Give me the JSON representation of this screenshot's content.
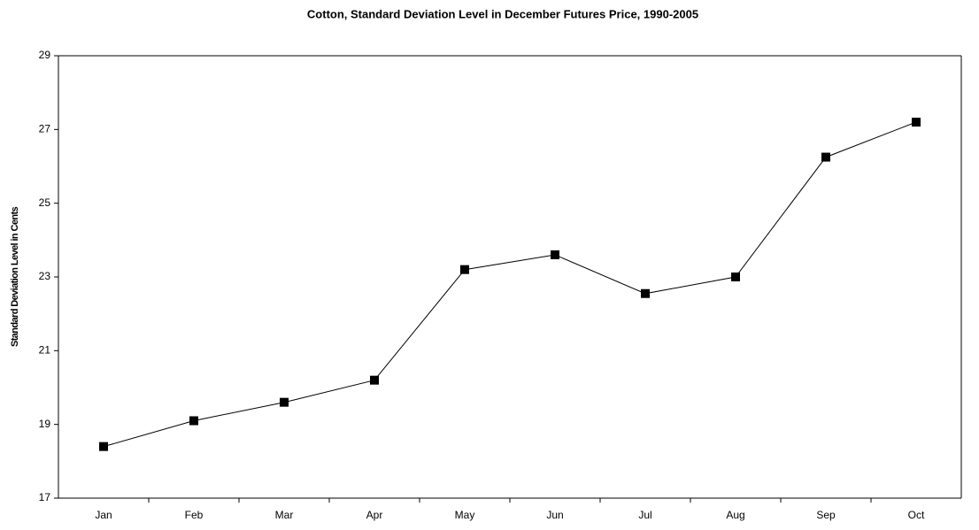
{
  "chart_data": {
    "type": "line",
    "title": "Cotton, Standard Deviation Level in December Futures Price, 1990-2005",
    "y_label": "Standard Deviation Level in Cents",
    "categories": [
      "Jan",
      "Feb",
      "Mar",
      "Apr",
      "May",
      "Jun",
      "Jul",
      "Aug",
      "Sep",
      "Oct"
    ],
    "series": [
      {
        "name": "Standard Deviation",
        "color": "#000000",
        "values": [
          18.4,
          19.1,
          19.6,
          20.2,
          23.2,
          23.6,
          22.55,
          23.0,
          26.25,
          27.2
        ]
      }
    ],
    "ylim": [
      17,
      29
    ],
    "yticks": [
      17,
      19,
      21,
      23,
      25,
      27,
      29
    ],
    "grid": false
  }
}
